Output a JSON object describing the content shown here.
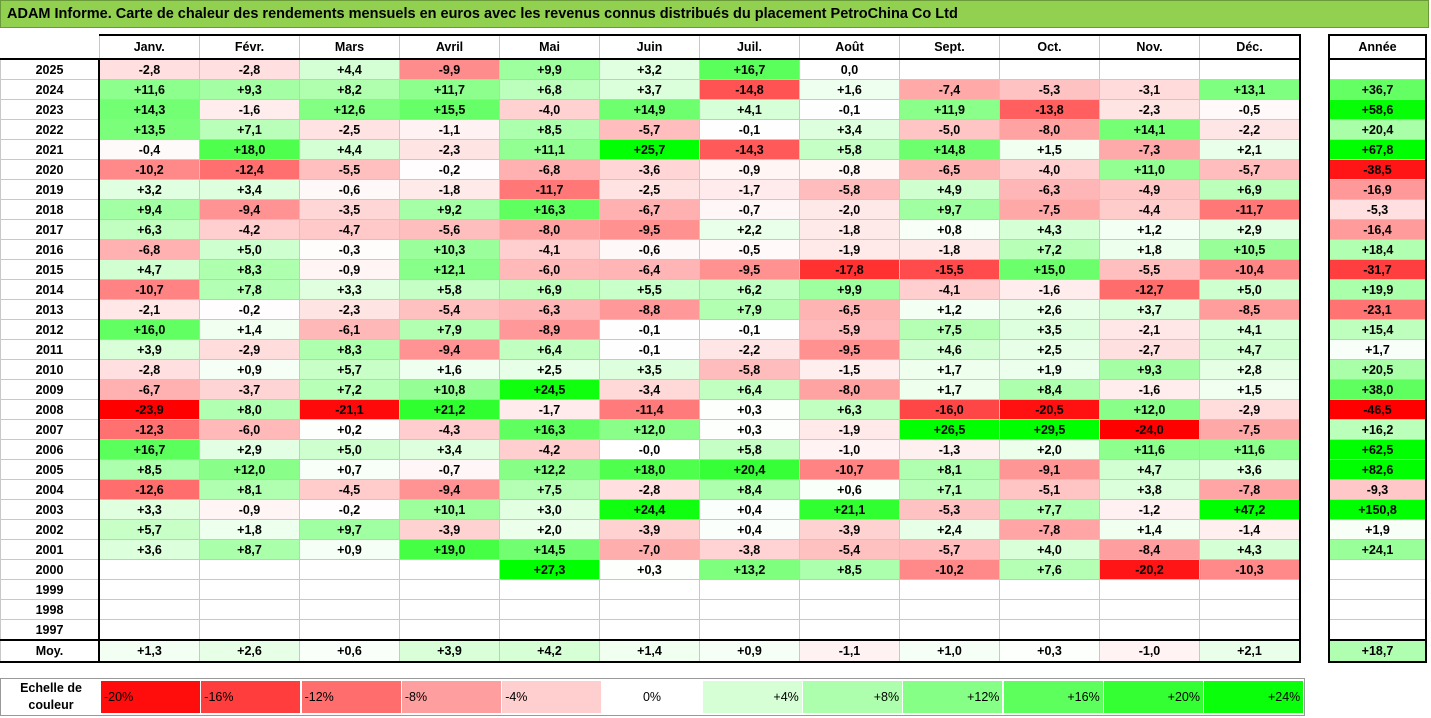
{
  "title": "ADAM Informe. Carte de chaleur des rendements mensuels en euros avec les revenus connus distribués du placement PetroChina Co Ltd",
  "chart_data": {
    "type": "heatmap",
    "months": [
      "Janv.",
      "Févr.",
      "Mars",
      "Avril",
      "Mai",
      "Juin",
      "Juil.",
      "Août",
      "Sept.",
      "Oct.",
      "Nov.",
      "Déc."
    ],
    "year_header": "Année",
    "average_label": "Moy.",
    "rows": [
      {
        "year": "2025",
        "values": [
          "-2,8",
          "-2,8",
          "+4,4",
          "-9,9",
          "+9,9",
          "+3,2",
          "+16,7",
          "0,0",
          "",
          "",
          "",
          ""
        ],
        "annual": ""
      },
      {
        "year": "2024",
        "values": [
          "+11,6",
          "+9,3",
          "+8,2",
          "+11,7",
          "+6,8",
          "+3,7",
          "-14,8",
          "+1,6",
          "-7,4",
          "-5,3",
          "-3,1",
          "+13,1"
        ],
        "annual": "+36,7"
      },
      {
        "year": "2023",
        "values": [
          "+14,3",
          "-1,6",
          "+12,6",
          "+15,5",
          "-4,0",
          "+14,9",
          "+4,1",
          "-0,1",
          "+11,9",
          "-13,8",
          "-2,3",
          "-0,5"
        ],
        "annual": "+58,6"
      },
      {
        "year": "2022",
        "values": [
          "+13,5",
          "+7,1",
          "-2,5",
          "-1,1",
          "+8,5",
          "-5,7",
          "-0,1",
          "+3,4",
          "-5,0",
          "-8,0",
          "+14,1",
          "-2,2"
        ],
        "annual": "+20,4"
      },
      {
        "year": "2021",
        "values": [
          "-0,4",
          "+18,0",
          "+4,4",
          "-2,3",
          "+11,1",
          "+25,7",
          "-14,3",
          "+5,8",
          "+14,8",
          "+1,5",
          "-7,3",
          "+2,1"
        ],
        "annual": "+67,8"
      },
      {
        "year": "2020",
        "values": [
          "-10,2",
          "-12,4",
          "-5,5",
          "-0,2",
          "-6,8",
          "-3,6",
          "-0,9",
          "-0,8",
          "-6,5",
          "-4,0",
          "+11,0",
          "-5,7"
        ],
        "annual": "-38,5"
      },
      {
        "year": "2019",
        "values": [
          "+3,2",
          "+3,4",
          "-0,6",
          "-1,8",
          "-11,7",
          "-2,5",
          "-1,7",
          "-5,8",
          "+4,9",
          "-6,3",
          "-4,9",
          "+6,9"
        ],
        "annual": "-16,9"
      },
      {
        "year": "2018",
        "values": [
          "+9,4",
          "-9,4",
          "-3,5",
          "+9,2",
          "+16,3",
          "-6,7",
          "-0,7",
          "-2,0",
          "+9,7",
          "-7,5",
          "-4,4",
          "-11,7"
        ],
        "annual": "-5,3"
      },
      {
        "year": "2017",
        "values": [
          "+6,3",
          "-4,2",
          "-4,7",
          "-5,6",
          "-8,0",
          "-9,5",
          "+2,2",
          "-1,8",
          "+0,8",
          "+4,3",
          "+1,2",
          "+2,9"
        ],
        "annual": "-16,4"
      },
      {
        "year": "2016",
        "values": [
          "-6,8",
          "+5,0",
          "-0,3",
          "+10,3",
          "-4,1",
          "-0,6",
          "-0,5",
          "-1,9",
          "-1,8",
          "+7,2",
          "+1,8",
          "+10,5"
        ],
        "annual": "+18,4"
      },
      {
        "year": "2015",
        "values": [
          "+4,7",
          "+8,3",
          "-0,9",
          "+12,1",
          "-6,0",
          "-6,4",
          "-9,5",
          "-17,8",
          "-15,5",
          "+15,0",
          "-5,5",
          "-10,4"
        ],
        "annual": "-31,7"
      },
      {
        "year": "2014",
        "values": [
          "-10,7",
          "+7,8",
          "+3,3",
          "+5,8",
          "+6,9",
          "+5,5",
          "+6,2",
          "+9,9",
          "-4,1",
          "-1,6",
          "-12,7",
          "+5,0"
        ],
        "annual": "+19,9"
      },
      {
        "year": "2013",
        "values": [
          "-2,1",
          "-0,2",
          "-2,3",
          "-5,4",
          "-6,3",
          "-8,8",
          "+7,9",
          "-6,5",
          "+1,2",
          "+2,6",
          "+3,7",
          "-8,5"
        ],
        "annual": "-23,1"
      },
      {
        "year": "2012",
        "values": [
          "+16,0",
          "+1,4",
          "-6,1",
          "+7,9",
          "-8,9",
          "-0,1",
          "-0,1",
          "-5,9",
          "+7,5",
          "+3,5",
          "-2,1",
          "+4,1"
        ],
        "annual": "+15,4"
      },
      {
        "year": "2011",
        "values": [
          "+3,9",
          "-2,9",
          "+8,3",
          "-9,4",
          "+6,4",
          "-0,1",
          "-2,2",
          "-9,5",
          "+4,6",
          "+2,5",
          "-2,7",
          "+4,7"
        ],
        "annual": "+1,7"
      },
      {
        "year": "2010",
        "values": [
          "-2,8",
          "+0,9",
          "+5,7",
          "+1,6",
          "+2,5",
          "+3,5",
          "-5,8",
          "-1,5",
          "+1,7",
          "+1,9",
          "+9,3",
          "+2,8"
        ],
        "annual": "+20,5"
      },
      {
        "year": "2009",
        "values": [
          "-6,7",
          "-3,7",
          "+7,2",
          "+10,8",
          "+24,5",
          "-3,4",
          "+6,4",
          "-8,0",
          "+1,7",
          "+8,4",
          "-1,6",
          "+1,5"
        ],
        "annual": "+38,0"
      },
      {
        "year": "2008",
        "values": [
          "-23,9",
          "+8,0",
          "-21,1",
          "+21,2",
          "-1,7",
          "-11,4",
          "+0,3",
          "+6,3",
          "-16,0",
          "-20,5",
          "+12,0",
          "-2,9"
        ],
        "annual": "-46,5"
      },
      {
        "year": "2007",
        "values": [
          "-12,3",
          "-6,0",
          "+0,2",
          "-4,3",
          "+16,3",
          "+12,0",
          "+0,3",
          "-1,9",
          "+26,5",
          "+29,5",
          "-24,0",
          "-7,5"
        ],
        "annual": "+16,2"
      },
      {
        "year": "2006",
        "values": [
          "+16,7",
          "+2,9",
          "+5,0",
          "+3,4",
          "-4,2",
          "-0,0",
          "+5,8",
          "-1,0",
          "-1,3",
          "+2,0",
          "+11,6",
          "+11,6"
        ],
        "annual": "+62,5"
      },
      {
        "year": "2005",
        "values": [
          "+8,5",
          "+12,0",
          "+0,7",
          "-0,7",
          "+12,2",
          "+18,0",
          "+20,4",
          "-10,7",
          "+8,1",
          "-9,1",
          "+4,7",
          "+3,6"
        ],
        "annual": "+82,6"
      },
      {
        "year": "2004",
        "values": [
          "-12,6",
          "+8,1",
          "-4,5",
          "-9,4",
          "+7,5",
          "-2,8",
          "+8,4",
          "+0,6",
          "+7,1",
          "-5,1",
          "+3,8",
          "-7,8"
        ],
        "annual": "-9,3"
      },
      {
        "year": "2003",
        "values": [
          "+3,3",
          "-0,9",
          "-0,2",
          "+10,1",
          "+3,0",
          "+24,4",
          "+0,4",
          "+21,1",
          "-5,3",
          "+7,7",
          "-1,2",
          "+47,2"
        ],
        "annual": "+150,8"
      },
      {
        "year": "2002",
        "values": [
          "+5,7",
          "+1,8",
          "+9,7",
          "-3,9",
          "+2,0",
          "-3,9",
          "+0,4",
          "-3,9",
          "+2,4",
          "-7,8",
          "+1,4",
          "-1,4"
        ],
        "annual": "+1,9"
      },
      {
        "year": "2001",
        "values": [
          "+3,6",
          "+8,7",
          "+0,9",
          "+19,0",
          "+14,5",
          "-7,0",
          "-3,8",
          "-5,4",
          "-5,7",
          "+4,0",
          "-8,4",
          "+4,3"
        ],
        "annual": "+24,1"
      },
      {
        "year": "2000",
        "values": [
          "",
          "",
          "",
          "",
          "+27,3",
          "+0,3",
          "+13,2",
          "+8,5",
          "-10,2",
          "+7,6",
          "-20,2",
          "-10,3"
        ],
        "annual": ""
      },
      {
        "year": "1999",
        "values": [
          "",
          "",
          "",
          "",
          "",
          "",
          "",
          "",
          "",
          "",
          "",
          ""
        ],
        "annual": ""
      },
      {
        "year": "1998",
        "values": [
          "",
          "",
          "",
          "",
          "",
          "",
          "",
          "",
          "",
          "",
          "",
          ""
        ],
        "annual": ""
      },
      {
        "year": "1997",
        "values": [
          "",
          "",
          "",
          "",
          "",
          "",
          "",
          "",
          "",
          "",
          "",
          ""
        ],
        "annual": ""
      }
    ],
    "averages": {
      "values": [
        "+1,3",
        "+2,6",
        "+0,6",
        "+3,9",
        "+4,2",
        "+1,4",
        "+0,9",
        "-1,1",
        "+1,0",
        "+0,3",
        "-1,0",
        "+2,1"
      ],
      "annual": "+18,7"
    },
    "color_scale": {
      "label": "Echelle de couleur",
      "stops": [
        "-20%",
        "-16%",
        "-12%",
        "-8%",
        "-4%",
        "0%",
        "+4%",
        "+8%",
        "+12%",
        "+16%",
        "+20%",
        "+24%"
      ]
    },
    "colors": {
      "title_bg": "#92d050",
      "negative_max": "#ff0000",
      "positive_max": "#00ff00",
      "neutral": "#ffffff"
    }
  }
}
